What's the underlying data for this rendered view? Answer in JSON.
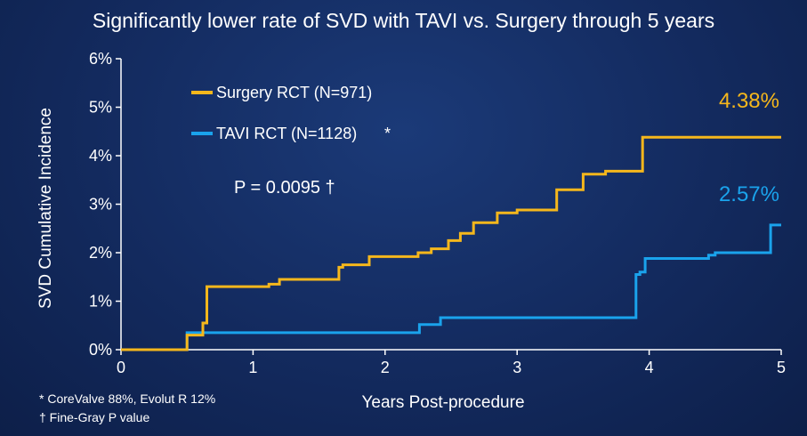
{
  "title": "Significantly lower rate of SVD with TAVI vs. Surgery through 5 years",
  "chart_data": {
    "type": "line",
    "step": true,
    "xlabel": "Years Post-procedure",
    "ylabel": "SVD Cumulative Incidence",
    "xlim": [
      0,
      5
    ],
    "ylim": [
      0,
      6
    ],
    "xticks": [
      "0",
      "1",
      "2",
      "3",
      "4",
      "5"
    ],
    "yticks": [
      "0%",
      "1%",
      "2%",
      "3%",
      "4%",
      "5%",
      "6%"
    ],
    "legend_position": "top-left",
    "p_value_label": "P = 0.0095 †",
    "series": [
      {
        "name": "Surgery RCT (N=971)",
        "color": "#f5b71c",
        "end_label": "4.38%",
        "points": [
          [
            0,
            0
          ],
          [
            0.5,
            0
          ],
          [
            0.5,
            0.3
          ],
          [
            0.62,
            0.3
          ],
          [
            0.62,
            0.55
          ],
          [
            0.65,
            0.55
          ],
          [
            0.65,
            1.3
          ],
          [
            1.12,
            1.3
          ],
          [
            1.12,
            1.35
          ],
          [
            1.2,
            1.35
          ],
          [
            1.2,
            1.45
          ],
          [
            1.65,
            1.45
          ],
          [
            1.65,
            1.7
          ],
          [
            1.68,
            1.7
          ],
          [
            1.68,
            1.75
          ],
          [
            1.88,
            1.75
          ],
          [
            1.88,
            1.92
          ],
          [
            2.25,
            1.92
          ],
          [
            2.25,
            2.0
          ],
          [
            2.35,
            2.0
          ],
          [
            2.35,
            2.08
          ],
          [
            2.48,
            2.08
          ],
          [
            2.48,
            2.25
          ],
          [
            2.57,
            2.25
          ],
          [
            2.57,
            2.4
          ],
          [
            2.67,
            2.4
          ],
          [
            2.67,
            2.62
          ],
          [
            2.85,
            2.62
          ],
          [
            2.85,
            2.82
          ],
          [
            3.0,
            2.82
          ],
          [
            3.0,
            2.88
          ],
          [
            3.3,
            2.88
          ],
          [
            3.3,
            3.3
          ],
          [
            3.5,
            3.3
          ],
          [
            3.5,
            3.62
          ],
          [
            3.67,
            3.62
          ],
          [
            3.67,
            3.68
          ],
          [
            3.95,
            3.68
          ],
          [
            3.95,
            4.38
          ],
          [
            5.0,
            4.38
          ]
        ]
      },
      {
        "name": "TAVI RCT (N=1128)",
        "marker": "*",
        "color": "#1aa3ec",
        "end_label": "2.57%",
        "points": [
          [
            0,
            0
          ],
          [
            0.5,
            0
          ],
          [
            0.5,
            0.35
          ],
          [
            2.26,
            0.35
          ],
          [
            2.26,
            0.52
          ],
          [
            2.42,
            0.52
          ],
          [
            2.42,
            0.66
          ],
          [
            3.9,
            0.66
          ],
          [
            3.9,
            1.55
          ],
          [
            3.93,
            1.55
          ],
          [
            3.93,
            1.6
          ],
          [
            3.97,
            1.6
          ],
          [
            3.97,
            1.88
          ],
          [
            4.45,
            1.88
          ],
          [
            4.45,
            1.95
          ],
          [
            4.5,
            1.95
          ],
          [
            4.5,
            2.0
          ],
          [
            4.92,
            2.0
          ],
          [
            4.92,
            2.57
          ],
          [
            5.0,
            2.57
          ]
        ]
      }
    ]
  },
  "footnotes": [
    "* CoreValve 88%, Evolut R 12%",
    "† Fine-Gray P value"
  ]
}
